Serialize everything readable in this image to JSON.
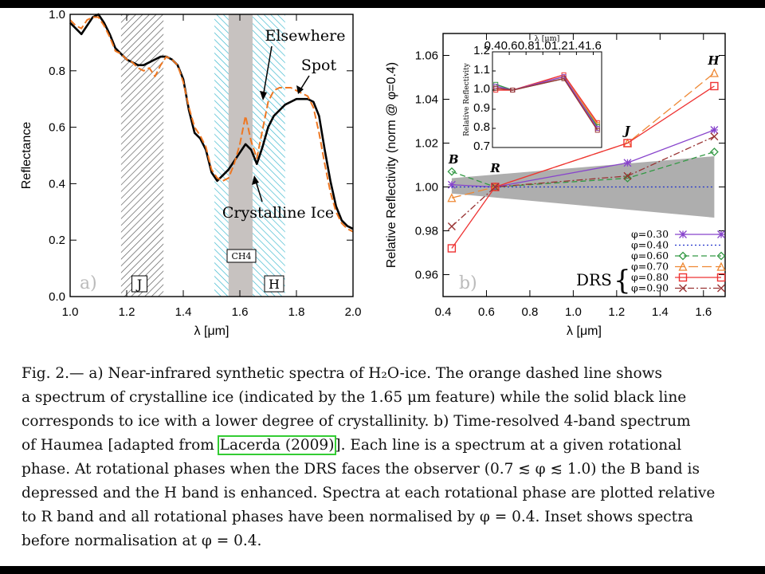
{
  "chart_data": [
    {
      "type": "line",
      "panel_label": "a)",
      "xlabel": "λ [μm]",
      "ylabel": "Reflectance",
      "xlim": [
        1.0,
        2.0
      ],
      "ylim": [
        0.0,
        1.0
      ],
      "xticks": [
        "1.0",
        "1.2",
        "1.4",
        "1.6",
        "1.8",
        "2.0"
      ],
      "yticks": [
        "0.0",
        "0.2",
        "0.4",
        "0.6",
        "0.8",
        "1.0"
      ],
      "bands": [
        {
          "label": "J",
          "x0": 1.18,
          "x1": 1.33,
          "style": "hatched-gray"
        },
        {
          "label": "H",
          "x0": 1.51,
          "x1": 1.76,
          "style": "hatched-cyan"
        },
        {
          "label": "CH4",
          "x0": 1.56,
          "x1": 1.645,
          "style": "gray-fill"
        }
      ],
      "annotations": [
        "Elsewhere",
        "Spot",
        "Crystalline Ice"
      ],
      "series": [
        {
          "color": "#000000",
          "style": "solid",
          "x": [
            1.0,
            1.02,
            1.04,
            1.06,
            1.08,
            1.1,
            1.12,
            1.14,
            1.16,
            1.18,
            1.2,
            1.22,
            1.24,
            1.26,
            1.28,
            1.3,
            1.32,
            1.34,
            1.36,
            1.38,
            1.4,
            1.42,
            1.44,
            1.46,
            1.48,
            1.5,
            1.52,
            1.54,
            1.56,
            1.58,
            1.6,
            1.62,
            1.64,
            1.66,
            1.68,
            1.7,
            1.72,
            1.74,
            1.76,
            1.78,
            1.8,
            1.82,
            1.84,
            1.86,
            1.88,
            1.9,
            1.92,
            1.94,
            1.96,
            1.98,
            2.0
          ],
          "y": [
            0.97,
            0.95,
            0.93,
            0.96,
            0.99,
            1.0,
            0.97,
            0.93,
            0.88,
            0.86,
            0.84,
            0.83,
            0.82,
            0.82,
            0.83,
            0.84,
            0.85,
            0.85,
            0.84,
            0.82,
            0.77,
            0.66,
            0.58,
            0.56,
            0.52,
            0.44,
            0.41,
            0.43,
            0.45,
            0.48,
            0.51,
            0.54,
            0.52,
            0.47,
            0.53,
            0.6,
            0.64,
            0.66,
            0.68,
            0.69,
            0.7,
            0.7,
            0.7,
            0.69,
            0.64,
            0.52,
            0.41,
            0.32,
            0.27,
            0.25,
            0.24
          ]
        },
        {
          "color": "#ee7722",
          "style": "dashed",
          "x": [
            1.0,
            1.02,
            1.04,
            1.06,
            1.08,
            1.1,
            1.12,
            1.14,
            1.16,
            1.18,
            1.2,
            1.22,
            1.24,
            1.26,
            1.28,
            1.3,
            1.32,
            1.34,
            1.36,
            1.38,
            1.4,
            1.42,
            1.44,
            1.46,
            1.48,
            1.5,
            1.52,
            1.54,
            1.56,
            1.58,
            1.6,
            1.62,
            1.64,
            1.66,
            1.68,
            1.7,
            1.72,
            1.74,
            1.76,
            1.78,
            1.8,
            1.82,
            1.84,
            1.86,
            1.88,
            1.9,
            1.92,
            1.94,
            1.96,
            1.98,
            2.0
          ],
          "y": [
            0.98,
            0.96,
            0.95,
            0.98,
            0.99,
            0.99,
            0.96,
            0.92,
            0.87,
            0.86,
            0.84,
            0.83,
            0.81,
            0.8,
            0.81,
            0.78,
            0.82,
            0.85,
            0.84,
            0.82,
            0.76,
            0.67,
            0.6,
            0.57,
            0.53,
            0.45,
            0.42,
            0.41,
            0.42,
            0.47,
            0.54,
            0.64,
            0.55,
            0.49,
            0.59,
            0.69,
            0.73,
            0.74,
            0.74,
            0.74,
            0.73,
            0.72,
            0.71,
            0.67,
            0.58,
            0.47,
            0.37,
            0.3,
            0.26,
            0.24,
            0.23
          ]
        }
      ]
    },
    {
      "type": "line",
      "panel_label": "b)",
      "xlabel": "λ [μm]",
      "ylabel": "Relative Reflectivity (norm @ φ=0.4)",
      "xlim": [
        0.4,
        1.7
      ],
      "ylim": [
        0.95,
        1.07
      ],
      "xticks": [
        "0.4",
        "0.6",
        "0.8",
        "1.0",
        "1.2",
        "1.4",
        "1.6"
      ],
      "yticks": [
        "0.96",
        "0.98",
        "1.00",
        "1.02",
        "1.04",
        "1.06"
      ],
      "band_letters": [
        {
          "label": "B",
          "x": 0.44
        },
        {
          "label": "R",
          "x": 0.64
        },
        {
          "label": "J",
          "x": 1.25
        },
        {
          "label": "H",
          "x": 1.65
        }
      ],
      "drs_label": "DRS",
      "uncertainty_band": {
        "x": [
          0.44,
          1.65
        ],
        "upper": [
          1.004,
          1.014
        ],
        "lower": [
          0.997,
          0.986
        ],
        "color": "#aaaaaa"
      },
      "series": [
        {
          "name": "φ=0.30",
          "color": "#8844cc",
          "style": "solid",
          "marker": "star",
          "x": [
            0.44,
            0.64,
            1.25,
            1.65
          ],
          "y": [
            1.001,
            1.0,
            1.011,
            1.026
          ]
        },
        {
          "name": "φ=0.40",
          "color": "#2233cc",
          "style": "dotted",
          "marker": "none",
          "x": [
            0.44,
            0.64,
            1.25,
            1.65
          ],
          "y": [
            1.0,
            1.0,
            1.0,
            1.0
          ]
        },
        {
          "name": "φ=0.60",
          "color": "#339944",
          "style": "dashed",
          "marker": "diamond",
          "x": [
            0.44,
            0.64,
            1.25,
            1.65
          ],
          "y": [
            1.007,
            1.0,
            1.004,
            1.016
          ]
        },
        {
          "name": "φ=0.70",
          "color": "#ee8833",
          "style": "longdash",
          "marker": "triangle",
          "x": [
            0.44,
            0.64,
            1.25,
            1.65
          ],
          "y": [
            0.995,
            1.0,
            1.02,
            1.052
          ]
        },
        {
          "name": "φ=0.80",
          "color": "#ee3333",
          "style": "solid",
          "marker": "square",
          "x": [
            0.44,
            0.64,
            1.25,
            1.65
          ],
          "y": [
            0.972,
            1.0,
            1.02,
            1.046
          ]
        },
        {
          "name": "φ=0.90",
          "color": "#993333",
          "style": "dashdot",
          "marker": "x",
          "x": [
            0.44,
            0.64,
            1.25,
            1.65
          ],
          "y": [
            0.982,
            1.0,
            1.005,
            1.023
          ]
        }
      ]
    },
    {
      "type": "line",
      "panel_label": "inset",
      "xlabel": "λ [μm]",
      "ylabel": "Relative Reflectivity",
      "xlim": [
        0.4,
        1.7
      ],
      "ylim": [
        0.7,
        1.2
      ],
      "xticks": [
        "0.4",
        "0.6",
        "0.8",
        "1.0",
        "1.2",
        "1.4",
        "1.6"
      ],
      "yticks": [
        "0.7",
        "0.8",
        "0.9",
        "1.0",
        "1.1",
        "1.2"
      ],
      "series": [
        {
          "color": "#ee3333",
          "x": [
            0.44,
            0.64,
            1.25,
            1.65
          ],
          "y": [
            1.0,
            1.0,
            1.08,
            0.83
          ]
        },
        {
          "color": "#ee8833",
          "x": [
            0.44,
            0.64,
            1.25,
            1.65
          ],
          "y": [
            1.01,
            1.0,
            1.07,
            0.82
          ]
        },
        {
          "color": "#339944",
          "x": [
            0.44,
            0.64,
            1.25,
            1.65
          ],
          "y": [
            1.03,
            1.0,
            1.06,
            0.81
          ]
        },
        {
          "color": "#8844cc",
          "x": [
            0.44,
            0.64,
            1.25,
            1.65
          ],
          "y": [
            1.02,
            1.0,
            1.07,
            0.8
          ]
        },
        {
          "color": "#993333",
          "x": [
            0.44,
            0.64,
            1.25,
            1.65
          ],
          "y": [
            1.01,
            1.0,
            1.06,
            0.79
          ]
        }
      ]
    }
  ],
  "caption": {
    "lines": [
      [
        "Fig.  2.— a) Near-infrared synthetic spectra of H₂O-ice.  The orange dashed line shows"
      ],
      [
        "a spectrum of crystalline ice (indicated by the 1.65 μm feature) while the solid black line"
      ],
      [
        "corresponds to ice with a lower degree of crystallinity.  b) Time-resolved 4-band spectrum"
      ],
      [
        "of Haumea [adapted from ",
        {
          "cite": "Lacerda (2009)"
        },
        "].  Each line is a spectrum at a given rotational"
      ],
      [
        "phase.  At rotational phases when the DRS faces the observer (0.7 ≲ φ ≲ 1.0) the B band is"
      ],
      [
        "depressed and the H band is enhanced.  Spectra at each rotational phase are plotted relative"
      ],
      [
        "to R band and all rotational phases have been normalised by φ = 0.4.  Inset shows spectra"
      ],
      [
        "before normalisation at φ = 0.4."
      ]
    ]
  }
}
